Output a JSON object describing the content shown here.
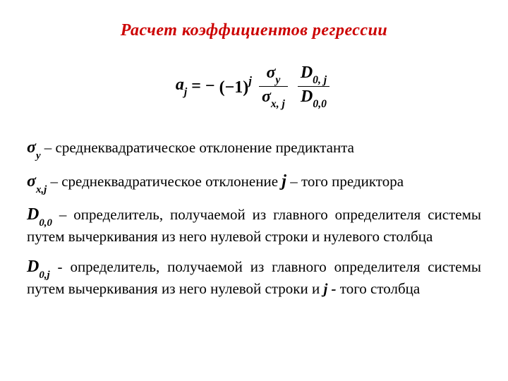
{
  "colors": {
    "title_color": "#cc0000",
    "body_color": "#000000",
    "background": "#ffffff"
  },
  "typography": {
    "family": "Times New Roman",
    "title_fontsize_pt": 18,
    "body_fontsize_pt": 16,
    "symbol_fontsize_pt": 18,
    "title_style": "bold italic",
    "symbol_style": "bold italic"
  },
  "title": "Расчет   коэффициентов   регрессии",
  "formula": {
    "lhs_var": "a",
    "lhs_sub": "j",
    "eq": "=",
    "neg": "−",
    "base": "(−1)",
    "exp": "j",
    "frac1_num_sym": "σ",
    "frac1_num_sub": "y",
    "frac1_den_sym": "σ",
    "frac1_den_sub": "x, j",
    "frac2_num_sym": "D",
    "frac2_num_sub": "0, j",
    "frac2_den_sym": "D",
    "frac2_den_sub": "0,0"
  },
  "defs": {
    "d1_sym": "σ",
    "d1_sub": "y",
    "d1_text": " – среднеквадратическое отклонение предиктанта",
    "d2_sym": "σ",
    "d2_sub": "x,j",
    "d2_text_a": " – среднеквадратическое отклонение ",
    "d2_j": "j",
    "d2_text_b": " – того предиктора",
    "d3_sym": "D",
    "d3_sub": "0,0",
    "d3_text": " – определитель, получаемой из главного определителя системы путем вычеркивания из него нулевой строки и нулевого столбца",
    "d4_sym": "D",
    "d4_sub": "0,j",
    "d4_text_a": " - определитель, получаемой из главного определителя системы путем вычеркивания из него нулевой строки и ",
    "d4_j": "j -",
    "d4_text_b": " того столбца"
  }
}
